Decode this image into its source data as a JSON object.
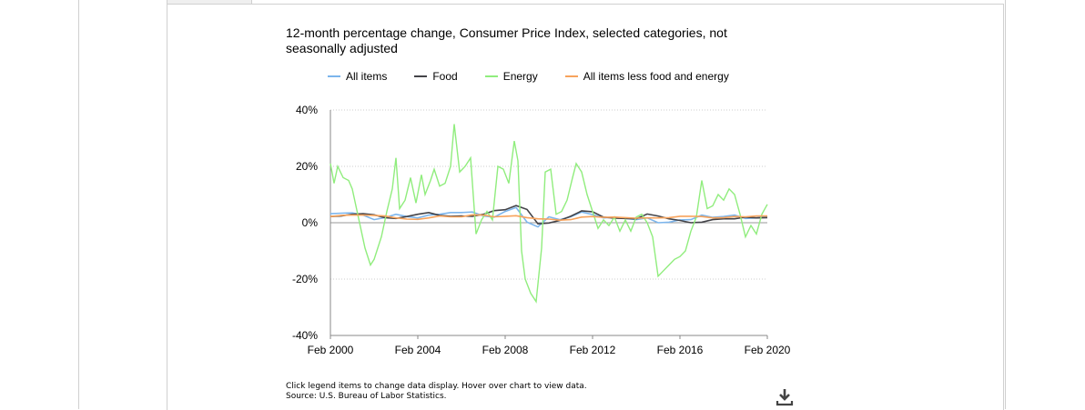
{
  "chart_data": {
    "type": "line",
    "title": "12-month percentage change, Consumer Price Index, selected categories, not seasonally adjusted",
    "xlabel": "",
    "ylabel": "",
    "x_ticks": [
      "Feb 2000",
      "Feb 2004",
      "Feb 2008",
      "Feb 2012",
      "Feb 2016",
      "Feb 2020"
    ],
    "y_ticks": [
      "40%",
      "20%",
      "0%",
      "-20%",
      "-40%"
    ],
    "ylim": [
      -40,
      40
    ],
    "x_range": [
      "Feb 2000",
      "Feb 2020"
    ],
    "grid": "horizontal dotted",
    "legend_position": "top",
    "series": [
      {
        "name": "All items",
        "color": "#7cb5ec",
        "points": [
          [
            "Feb 2000",
            3.2
          ],
          [
            "Aug 2000",
            3.4
          ],
          [
            "Feb 2001",
            3.5
          ],
          [
            "Aug 2001",
            2.7
          ],
          [
            "Feb 2002",
            1.1
          ],
          [
            "Aug 2002",
            1.8
          ],
          [
            "Feb 2003",
            3.0
          ],
          [
            "Aug 2003",
            2.2
          ],
          [
            "Feb 2004",
            1.7
          ],
          [
            "Aug 2004",
            2.7
          ],
          [
            "Feb 2005",
            3.0
          ],
          [
            "Aug 2005",
            3.6
          ],
          [
            "Feb 2006",
            3.6
          ],
          [
            "Aug 2006",
            3.8
          ],
          [
            "Feb 2007",
            2.4
          ],
          [
            "Aug 2007",
            2.0
          ],
          [
            "Feb 2008",
            4.0
          ],
          [
            "Aug 2008",
            5.4
          ],
          [
            "Feb 2009",
            0.2
          ],
          [
            "Aug 2009",
            -1.5
          ],
          [
            "Feb 2010",
            2.1
          ],
          [
            "Aug 2010",
            1.1
          ],
          [
            "Feb 2011",
            2.1
          ],
          [
            "Aug 2011",
            3.8
          ],
          [
            "Feb 2012",
            2.9
          ],
          [
            "Aug 2012",
            1.7
          ],
          [
            "Feb 2013",
            2.0
          ],
          [
            "Aug 2013",
            1.5
          ],
          [
            "Feb 2014",
            1.1
          ],
          [
            "Aug 2014",
            1.7
          ],
          [
            "Feb 2015",
            0.0
          ],
          [
            "Aug 2015",
            0.2
          ],
          [
            "Feb 2016",
            1.0
          ],
          [
            "Aug 2016",
            1.1
          ],
          [
            "Feb 2017",
            2.7
          ],
          [
            "Aug 2017",
            1.9
          ],
          [
            "Feb 2018",
            2.2
          ],
          [
            "Aug 2018",
            2.7
          ],
          [
            "Feb 2019",
            1.5
          ],
          [
            "Aug 2019",
            1.7
          ],
          [
            "Feb 2020",
            2.3
          ]
        ]
      },
      {
        "name": "Food",
        "color": "#434348",
        "points": [
          [
            "Feb 2000",
            2.2
          ],
          [
            "Aug 2000",
            2.4
          ],
          [
            "Feb 2001",
            3.0
          ],
          [
            "Aug 2001",
            3.2
          ],
          [
            "Feb 2002",
            2.8
          ],
          [
            "Aug 2002",
            1.8
          ],
          [
            "Feb 2003",
            1.5
          ],
          [
            "Aug 2003",
            2.2
          ],
          [
            "Feb 2004",
            3.0
          ],
          [
            "Aug 2004",
            3.6
          ],
          [
            "Feb 2005",
            2.6
          ],
          [
            "Aug 2005",
            2.3
          ],
          [
            "Feb 2006",
            2.4
          ],
          [
            "Aug 2006",
            2.3
          ],
          [
            "Feb 2007",
            3.0
          ],
          [
            "Aug 2007",
            4.3
          ],
          [
            "Feb 2008",
            4.6
          ],
          [
            "Aug 2008",
            6.1
          ],
          [
            "Feb 2009",
            4.7
          ],
          [
            "Aug 2009",
            -0.4
          ],
          [
            "Feb 2010",
            -0.1
          ],
          [
            "Aug 2010",
            0.8
          ],
          [
            "Feb 2011",
            2.3
          ],
          [
            "Aug 2011",
            4.2
          ],
          [
            "Feb 2012",
            3.9
          ],
          [
            "Aug 2012",
            2.0
          ],
          [
            "Feb 2013",
            1.6
          ],
          [
            "Aug 2013",
            1.5
          ],
          [
            "Feb 2014",
            1.4
          ],
          [
            "Aug 2014",
            3.1
          ],
          [
            "Feb 2015",
            2.4
          ],
          [
            "Aug 2015",
            1.4
          ],
          [
            "Feb 2016",
            0.8
          ],
          [
            "Aug 2016",
            0.0
          ],
          [
            "Feb 2017",
            0.2
          ],
          [
            "Aug 2017",
            1.1
          ],
          [
            "Feb 2018",
            1.4
          ],
          [
            "Aug 2018",
            1.4
          ],
          [
            "Feb 2019",
            2.0
          ],
          [
            "Aug 2019",
            1.7
          ],
          [
            "Feb 2020",
            1.8
          ]
        ]
      },
      {
        "name": "Energy",
        "color": "#90ed7d",
        "points": [
          [
            "Feb 2000",
            21.0
          ],
          [
            "Apr 2000",
            14.0
          ],
          [
            "Jun 2000",
            20.0
          ],
          [
            "Sep 2000",
            16.0
          ],
          [
            "Dec 2000",
            15.0
          ],
          [
            "Feb 2001",
            12.0
          ],
          [
            "Jun 2001",
            0.0
          ],
          [
            "Sep 2001",
            -9.0
          ],
          [
            "Dec 2001",
            -15.0
          ],
          [
            "Feb 2002",
            -13.0
          ],
          [
            "Jun 2002",
            -5.0
          ],
          [
            "Sep 2002",
            4.0
          ],
          [
            "Dec 2002",
            12.0
          ],
          [
            "Feb 2003",
            23.0
          ],
          [
            "Apr 2003",
            5.0
          ],
          [
            "Jul 2003",
            8.0
          ],
          [
            "Oct 2003",
            16.0
          ],
          [
            "Jan 2004",
            7.0
          ],
          [
            "Apr 2004",
            17.0
          ],
          [
            "Jun 2004",
            10.0
          ],
          [
            "Sep 2004",
            15.0
          ],
          [
            "Nov 2004",
            19.0
          ],
          [
            "Feb 2005",
            13.0
          ],
          [
            "May 2005",
            14.0
          ],
          [
            "Aug 2005",
            20.0
          ],
          [
            "Oct 2005",
            35.0
          ],
          [
            "Jan 2006",
            18.0
          ],
          [
            "Apr 2006",
            20.0
          ],
          [
            "Jul 2006",
            23.0
          ],
          [
            "Oct 2006",
            -4.0
          ],
          [
            "Jan 2007",
            1.0
          ],
          [
            "Apr 2007",
            4.0
          ],
          [
            "Jul 2007",
            1.0
          ],
          [
            "Oct 2007",
            20.0
          ],
          [
            "Jan 2008",
            19.0
          ],
          [
            "Apr 2008",
            14.0
          ],
          [
            "Jul 2008",
            29.0
          ],
          [
            "Sep 2008",
            22.0
          ],
          [
            "Nov 2008",
            -10.0
          ],
          [
            "Jan 2009",
            -20.0
          ],
          [
            "Apr 2009",
            -25.0
          ],
          [
            "Jul 2009",
            -28.0
          ],
          [
            "Oct 2009",
            -9.0
          ],
          [
            "Dec 2009",
            18.0
          ],
          [
            "Mar 2010",
            19.0
          ],
          [
            "Jun 2010",
            3.0
          ],
          [
            "Sep 2010",
            4.0
          ],
          [
            "Dec 2010",
            8.0
          ],
          [
            "Mar 2011",
            16.0
          ],
          [
            "May 2011",
            21.0
          ],
          [
            "Aug 2011",
            18.0
          ],
          [
            "Nov 2011",
            10.0
          ],
          [
            "Feb 2012",
            4.0
          ],
          [
            "May 2012",
            -2.0
          ],
          [
            "Aug 2012",
            1.0
          ],
          [
            "Nov 2012",
            -1.0
          ],
          [
            "Feb 2013",
            2.0
          ],
          [
            "May 2013",
            -3.0
          ],
          [
            "Aug 2013",
            1.0
          ],
          [
            "Nov 2013",
            -3.0
          ],
          [
            "Feb 2014",
            2.0
          ],
          [
            "May 2014",
            3.0
          ],
          [
            "Aug 2014",
            0.0
          ],
          [
            "Nov 2014",
            -5.0
          ],
          [
            "Feb 2015",
            -19.0
          ],
          [
            "May 2015",
            -17.0
          ],
          [
            "Aug 2015",
            -15.0
          ],
          [
            "Nov 2015",
            -13.0
          ],
          [
            "Feb 2016",
            -12.0
          ],
          [
            "May 2016",
            -10.0
          ],
          [
            "Aug 2016",
            -3.0
          ],
          [
            "Nov 2016",
            2.0
          ],
          [
            "Feb 2017",
            15.0
          ],
          [
            "May 2017",
            5.0
          ],
          [
            "Aug 2017",
            6.0
          ],
          [
            "Nov 2017",
            10.0
          ],
          [
            "Feb 2018",
            8.0
          ],
          [
            "May 2018",
            12.0
          ],
          [
            "Aug 2018",
            10.0
          ],
          [
            "Nov 2018",
            3.0
          ],
          [
            "Feb 2019",
            -5.0
          ],
          [
            "May 2019",
            -1.0
          ],
          [
            "Aug 2019",
            -4.0
          ],
          [
            "Nov 2019",
            3.0
          ],
          [
            "Feb 2020",
            6.5
          ]
        ]
      },
      {
        "name": "All items less food and energy",
        "color": "#f7a35c",
        "points": [
          [
            "Feb 2000",
            2.2
          ],
          [
            "Aug 2000",
            2.6
          ],
          [
            "Feb 2001",
            2.7
          ],
          [
            "Aug 2001",
            2.7
          ],
          [
            "Feb 2002",
            2.6
          ],
          [
            "Aug 2002",
            2.4
          ],
          [
            "Feb 2003",
            1.7
          ],
          [
            "Aug 2003",
            1.3
          ],
          [
            "Feb 2004",
            1.2
          ],
          [
            "Aug 2004",
            1.7
          ],
          [
            "Feb 2005",
            2.4
          ],
          [
            "Aug 2005",
            2.1
          ],
          [
            "Feb 2006",
            2.1
          ],
          [
            "Aug 2006",
            2.8
          ],
          [
            "Feb 2007",
            2.7
          ],
          [
            "Aug 2007",
            2.1
          ],
          [
            "Feb 2008",
            2.3
          ],
          [
            "Aug 2008",
            2.5
          ],
          [
            "Feb 2009",
            1.8
          ],
          [
            "Aug 2009",
            1.4
          ],
          [
            "Feb 2010",
            1.3
          ],
          [
            "Aug 2010",
            0.9
          ],
          [
            "Feb 2011",
            1.1
          ],
          [
            "Aug 2011",
            2.0
          ],
          [
            "Feb 2012",
            2.2
          ],
          [
            "Aug 2012",
            1.9
          ],
          [
            "Feb 2013",
            2.0
          ],
          [
            "Aug 2013",
            1.8
          ],
          [
            "Feb 2014",
            1.6
          ],
          [
            "Aug 2014",
            1.7
          ],
          [
            "Feb 2015",
            1.7
          ],
          [
            "Aug 2015",
            1.8
          ],
          [
            "Feb 2016",
            2.3
          ],
          [
            "Aug 2016",
            2.3
          ],
          [
            "Feb 2017",
            2.2
          ],
          [
            "Aug 2017",
            1.7
          ],
          [
            "Feb 2018",
            1.8
          ],
          [
            "Aug 2018",
            2.2
          ],
          [
            "Feb 2019",
            2.1
          ],
          [
            "Aug 2019",
            2.4
          ],
          [
            "Feb 2020",
            2.4
          ]
        ]
      }
    ]
  },
  "footer": {
    "note": "Click legend items to change data display. Hover over chart to view data.",
    "source": "Source: U.S. Bureau of Labor Statistics."
  },
  "download": {
    "icon": "download-icon"
  }
}
